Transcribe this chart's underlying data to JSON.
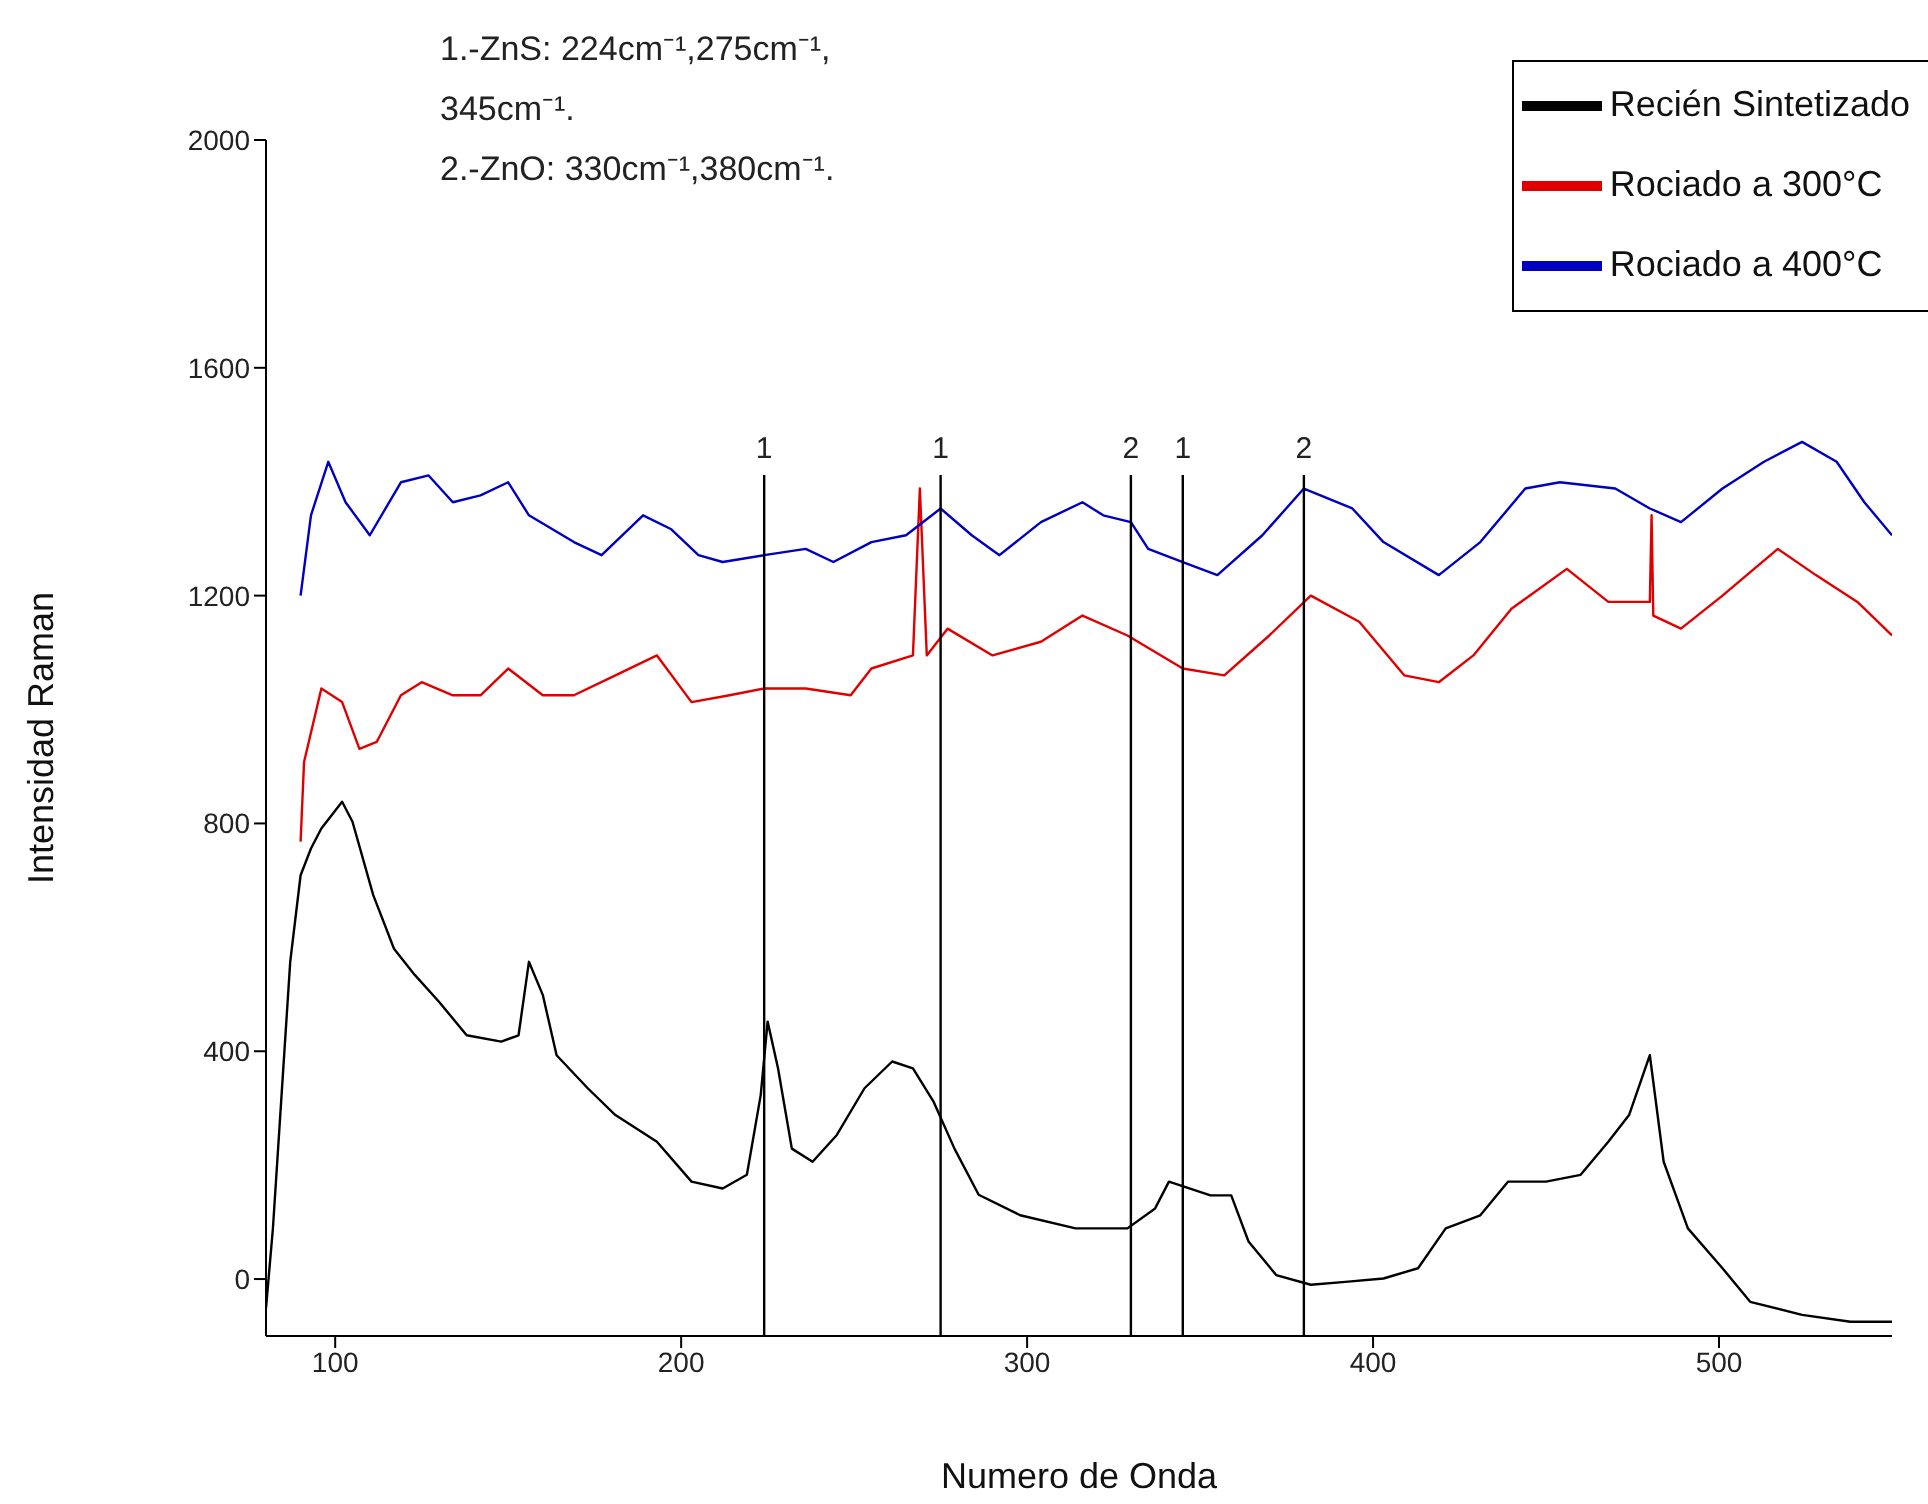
{
  "chart_data": {
    "type": "line",
    "xlabel": "Numero de Onda",
    "ylabel": "Intensidad Raman",
    "xlim": [
      80,
      550
    ],
    "ylim": [
      -100,
      2000
    ],
    "xticks": [
      100,
      200,
      300,
      400,
      500
    ],
    "yticks": [
      0,
      400,
      800,
      1200,
      1600,
      2000
    ],
    "grid": false,
    "legend": "top right",
    "marker": "none",
    "line_style": "solid",
    "annotations": [
      "1.-ZnS: 224cm⁻¹,275cm⁻¹, 345cm⁻¹.",
      "2.-ZnO: 330cm⁻¹,380cm⁻¹.",
      {
        "text": "1",
        "x": 224,
        "y": 1400
      },
      {
        "text": "1",
        "x": 275,
        "y": 1400
      },
      {
        "text": "2",
        "x": 330,
        "y": 1400
      },
      {
        "text": "1",
        "x": 345,
        "y": 1400
      },
      {
        "text": "2",
        "x": 380,
        "y": 1400
      }
    ],
    "ref_lines": [
      {
        "axis": "x",
        "value": 224,
        "color": "#000000"
      },
      {
        "axis": "x",
        "value": 275,
        "color": "#000000"
      },
      {
        "axis": "x",
        "value": 330,
        "color": "#000000"
      },
      {
        "axis": "x",
        "value": 345,
        "color": "#000000"
      },
      {
        "axis": "x",
        "value": 380,
        "color": "#000000"
      }
    ],
    "series": [
      {
        "name": "Recién Sintetizado",
        "color": "#000000",
        "x": [
          80,
          82,
          85,
          87,
          90,
          93,
          96,
          102,
          105,
          111,
          117,
          123,
          130,
          138,
          148,
          153,
          156,
          160,
          164,
          173,
          181,
          193,
          203,
          212,
          219,
          223,
          225,
          228,
          232,
          238,
          245,
          253,
          261,
          267,
          273,
          279,
          286,
          298,
          314,
          329,
          337,
          341,
          353,
          359,
          364,
          372,
          382,
          392,
          403,
          413,
          421,
          431,
          439,
          450,
          460,
          468,
          474,
          480,
          484,
          491,
          501,
          509,
          524,
          538,
          550
        ],
        "values": [
          -51,
          89,
          370,
          557,
          709,
          756,
          791,
          838,
          803,
          674,
          580,
          534,
          487,
          428,
          417,
          428,
          557,
          499,
          393,
          335,
          288,
          241,
          171,
          159,
          183,
          323,
          452,
          370,
          229,
          206,
          253,
          335,
          382,
          370,
          311,
          229,
          148,
          112,
          89,
          89,
          124,
          171,
          147,
          147,
          66,
          7,
          -10,
          -5,
          1,
          19,
          89,
          112,
          171,
          171,
          183,
          241,
          288,
          393,
          206,
          89,
          19,
          -40,
          -63,
          -75,
          -75
        ]
      },
      {
        "name": "Rociado a 300°C",
        "color": "#e00000",
        "x": [
          90,
          91,
          96,
          102,
          107,
          112,
          119,
          125,
          134,
          142,
          150,
          160,
          169,
          181,
          193,
          203,
          214,
          224,
          236,
          249,
          255,
          267,
          269,
          271,
          277,
          290,
          304,
          316,
          329,
          345,
          357,
          370,
          382,
          396,
          409,
          419,
          429,
          440,
          456,
          468,
          480,
          480.5,
          481,
          489,
          501,
          517,
          528,
          540,
          550
        ],
        "values": [
          768,
          908,
          1037,
          1013,
          931,
          943,
          1025,
          1048,
          1025,
          1025,
          1072,
          1025,
          1025,
          1060,
          1095,
          1013,
          1025,
          1037,
          1037,
          1025,
          1072,
          1095,
          1388,
          1095,
          1142,
          1095,
          1119,
          1165,
          1130,
          1072,
          1060,
          1130,
          1200,
          1154,
          1060,
          1048,
          1095,
          1177,
          1247,
          1189,
          1189,
          1341,
          1165,
          1142,
          1200,
          1282,
          1236,
          1189,
          1130
        ]
      },
      {
        "name": "Rociado a 400°C",
        "color": "#0000c0",
        "x": [
          90,
          93,
          98,
          103,
          110,
          119,
          127,
          134,
          142,
          150,
          156,
          169,
          177,
          189,
          197,
          205,
          212,
          224,
          236,
          244,
          255,
          265,
          275,
          284,
          292,
          304,
          316,
          322,
          330,
          335,
          345,
          355,
          368,
          380,
          394,
          403,
          419,
          431,
          444,
          454,
          470,
          480,
          489,
          501,
          513,
          524,
          534,
          542,
          550
        ],
        "values": [
          1200,
          1341,
          1435,
          1364,
          1306,
          1399,
          1411,
          1364,
          1376,
          1399,
          1341,
          1294,
          1271,
          1341,
          1317,
          1271,
          1259,
          1271,
          1282,
          1259,
          1294,
          1306,
          1353,
          1306,
          1271,
          1329,
          1364,
          1341,
          1329,
          1282,
          1259,
          1236,
          1306,
          1388,
          1353,
          1294,
          1236,
          1294,
          1388,
          1399,
          1388,
          1353,
          1329,
          1388,
          1435,
          1470,
          1435,
          1364,
          1306
        ]
      }
    ]
  }
}
